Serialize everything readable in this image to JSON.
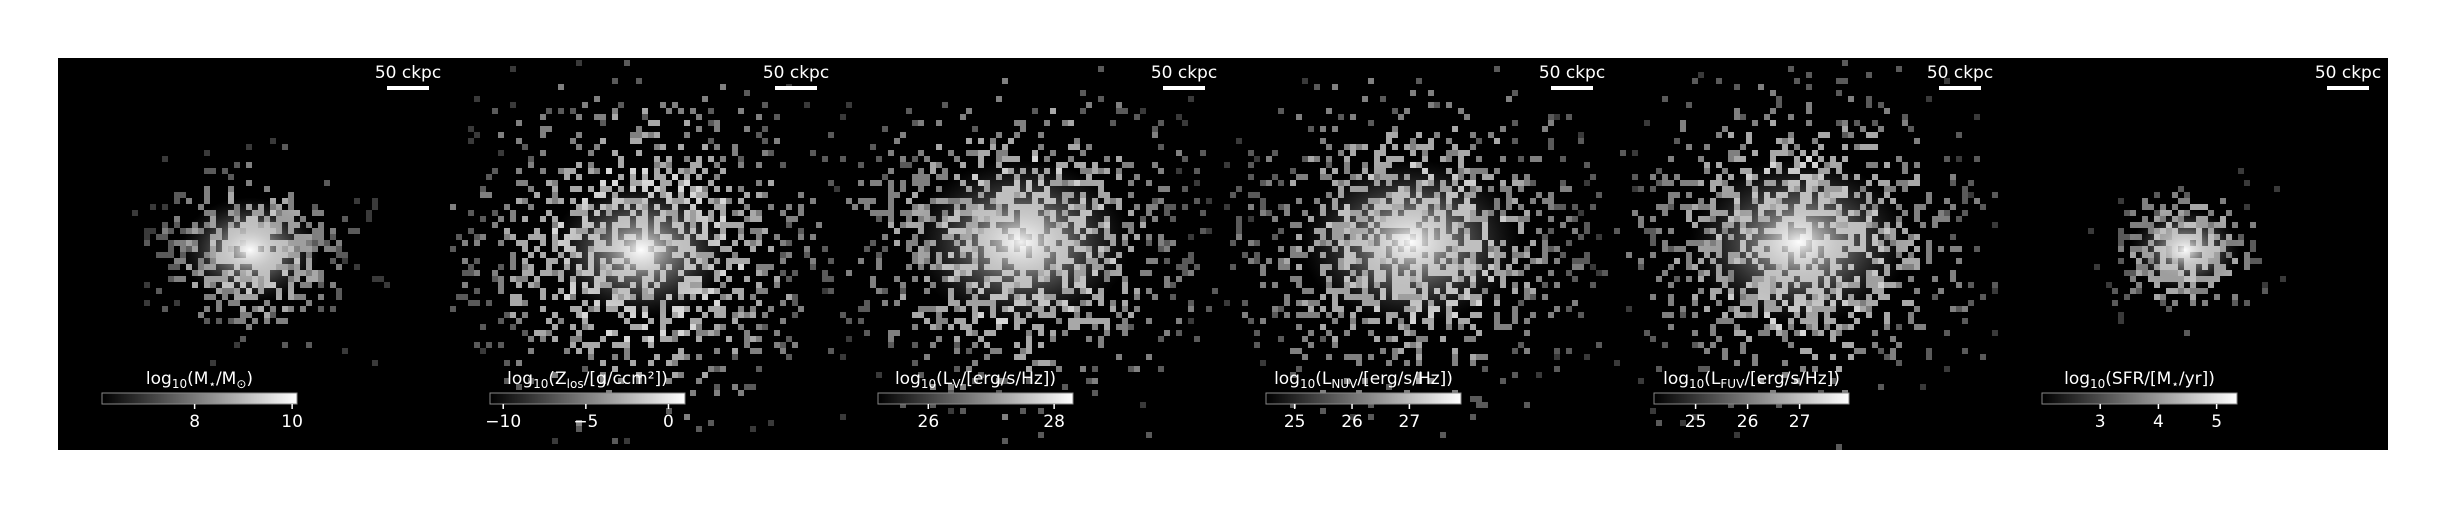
{
  "chart_data": [
    {
      "type": "image",
      "scale_bar": "50 ckpc",
      "colorbar_label": [
        "log",
        "10",
        "(M",
        "⋆",
        "/M",
        "⊙",
        ")"
      ],
      "clim": [
        6.1,
        10.1
      ],
      "cticks": [
        8,
        10
      ]
    },
    {
      "type": "image",
      "scale_bar": "50 ckpc",
      "colorbar_label": [
        "log",
        "10",
        "(Z",
        "los",
        "/[g/ccm²])"
      ],
      "clim": [
        -10.8,
        1.0
      ],
      "cticks": [
        {
          "value": -10,
          "label": "−10"
        },
        {
          "value": -5,
          "label": "−5"
        },
        0
      ]
    },
    {
      "type": "image",
      "scale_bar": "50 ckpc",
      "colorbar_label": [
        "log",
        "10",
        "(L",
        "V",
        "/[erg/s/Hz])"
      ],
      "clim": [
        25.2,
        28.3
      ],
      "cticks": [
        26,
        28
      ]
    },
    {
      "type": "image",
      "scale_bar": "50 ckpc",
      "colorbar_label": [
        "log",
        "10",
        "(L",
        "NUV",
        "/[erg/s/Hz])"
      ],
      "clim": [
        24.5,
        27.9
      ],
      "cticks": [
        25,
        26,
        27
      ]
    },
    {
      "type": "image",
      "scale_bar": "50 ckpc",
      "colorbar_label": [
        "log",
        "10",
        "(L",
        "FUV",
        "/[erg/s/Hz])"
      ],
      "clim": [
        24.2,
        27.95
      ],
      "cticks": [
        25,
        26,
        27
      ]
    },
    {
      "type": "image",
      "scale_bar": "50 ckpc",
      "colorbar_label": [
        "log",
        "10",
        "(SFR/[M",
        "⋆",
        "/yr])"
      ],
      "clim": [
        2.0,
        5.35
      ],
      "cticks": [
        3,
        4,
        5
      ]
    }
  ]
}
